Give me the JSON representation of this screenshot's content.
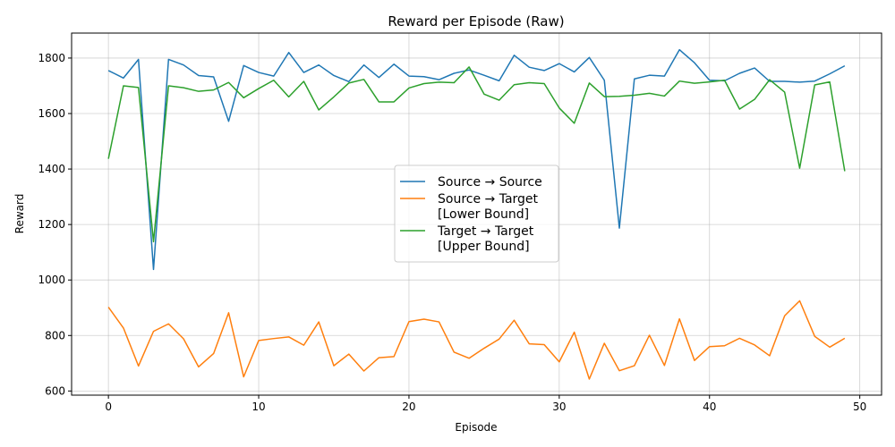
{
  "chart_data": {
    "type": "line",
    "title": "Reward per Episode (Raw)",
    "xlabel": "Episode",
    "ylabel": "Reward",
    "xlim": [
      -2.45,
      51.45
    ],
    "ylim": [
      585,
      1890
    ],
    "xticks": [
      0,
      10,
      20,
      30,
      40,
      50
    ],
    "yticks": [
      600,
      800,
      1000,
      1200,
      1400,
      1600,
      1800
    ],
    "grid": true,
    "legend_position": "center",
    "x": [
      0,
      1,
      2,
      3,
      4,
      5,
      6,
      7,
      8,
      9,
      10,
      11,
      12,
      13,
      14,
      15,
      16,
      17,
      18,
      19,
      20,
      21,
      22,
      23,
      24,
      25,
      26,
      27,
      28,
      29,
      30,
      31,
      32,
      33,
      34,
      35,
      36,
      37,
      38,
      39,
      40,
      41,
      42,
      43,
      44,
      45,
      46,
      47,
      48,
      49
    ],
    "series": [
      {
        "name": "Source → Source",
        "color": "#1f77b4",
        "values": [
          1755,
          1728,
          1795,
          1038,
          1795,
          1775,
          1737,
          1732,
          1572,
          1773,
          1748,
          1735,
          1820,
          1748,
          1775,
          1737,
          1715,
          1775,
          1730,
          1778,
          1735,
          1733,
          1722,
          1745,
          1757,
          1738,
          1718,
          1810,
          1767,
          1755,
          1780,
          1750,
          1802,
          1720,
          1187,
          1725,
          1738,
          1735,
          1830,
          1783,
          1720,
          1718,
          1745,
          1764,
          1716,
          1716,
          1713,
          1717,
          1743,
          1772
        ]
      },
      {
        "name": "Source → Target\n[Lower Bound]",
        "color": "#ff7f0e",
        "values": [
          902,
          827,
          690,
          815,
          842,
          788,
          687,
          735,
          882,
          651,
          782,
          789,
          795,
          765,
          849,
          691,
          733,
          672,
          720,
          724,
          850,
          859,
          849,
          740,
          718,
          754,
          787,
          855,
          770,
          767,
          705,
          812,
          643,
          772,
          673,
          691,
          801,
          692,
          860,
          710,
          760,
          763,
          790,
          766,
          727,
          871,
          925,
          797,
          758,
          790
        ]
      },
      {
        "name": "Target → Target\n[Upper Bound]",
        "color": "#2ca02c",
        "values": [
          1437,
          1700,
          1694,
          1138,
          1700,
          1693,
          1680,
          1685,
          1712,
          1657,
          1690,
          1720,
          1660,
          1716,
          1613,
          1660,
          1710,
          1723,
          1642,
          1642,
          1692,
          1708,
          1713,
          1711,
          1768,
          1670,
          1648,
          1704,
          1711,
          1708,
          1620,
          1565,
          1710,
          1661,
          1662,
          1666,
          1673,
          1663,
          1717,
          1709,
          1714,
          1720,
          1616,
          1651,
          1722,
          1677,
          1403,
          1703,
          1714,
          1392
        ]
      }
    ]
  }
}
